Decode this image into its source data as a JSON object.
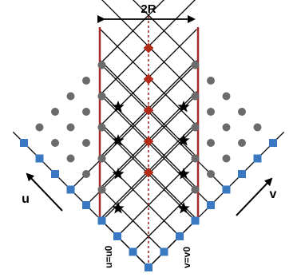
{
  "labels": {
    "width": "2R",
    "u_axis": "u",
    "v_axis": "v",
    "u_boundary": "u=u0",
    "v_boundary": "v=v0"
  },
  "colors": {
    "lines": "#000000",
    "walls": "#a52a2a",
    "center_line": "#a52a2a",
    "gray_nodes": "#6b6b6b",
    "blue_nodes": "#3a78c2",
    "red_nodes": "#b22a18",
    "stars": "#000000"
  }
}
